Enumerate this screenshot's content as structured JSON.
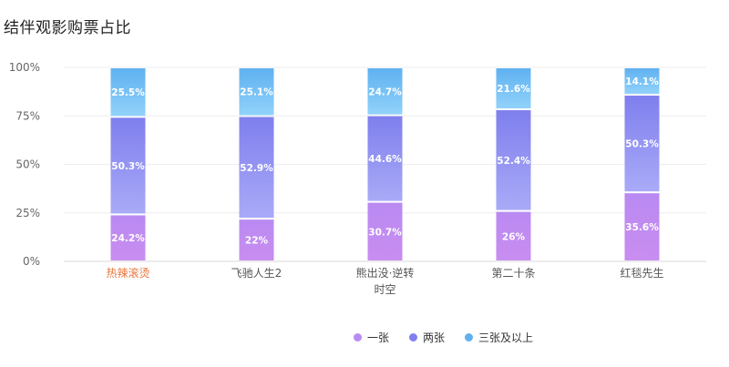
{
  "title": "结伴观影购票占比",
  "chart_data": {
    "type": "bar",
    "stacked": true,
    "categories": [
      "热辣滚烫",
      "飞驰人生2",
      "熊出没·逆转时空",
      "第二十条",
      "红毯先生"
    ],
    "highlight_category": "热辣滚烫",
    "series": [
      {
        "name": "一张",
        "values": [
          24.2,
          22,
          30.7,
          26,
          35.6
        ],
        "labels": [
          "24.2%",
          "22%",
          "30.7%",
          "26%",
          "35.6%"
        ]
      },
      {
        "name": "两张",
        "values": [
          50.3,
          52.9,
          44.6,
          52.4,
          50.3
        ],
        "labels": [
          "50.3%",
          "52.9%",
          "44.6%",
          "52.4%",
          "50.3%"
        ]
      },
      {
        "name": "三张及以上",
        "values": [
          25.5,
          25.1,
          24.7,
          21.6,
          14.1
        ],
        "labels": [
          "25.5%",
          "25.1%",
          "24.7%",
          "21.6%",
          "14.1%"
        ]
      }
    ],
    "y_ticks": [
      "0%",
      "25%",
      "50%",
      "75%",
      "100%"
    ],
    "ylim": [
      0,
      100
    ],
    "grid": true,
    "legend_position": "bottom-center",
    "colors": {
      "一张": [
        "#c98df0",
        "#b98af2"
      ],
      "两张": [
        "#a9aaf7",
        "#7f7fee"
      ],
      "三张及以上": [
        "#91d2fa",
        "#5fb1f1"
      ],
      "highlight_label": "#e7773d"
    }
  }
}
